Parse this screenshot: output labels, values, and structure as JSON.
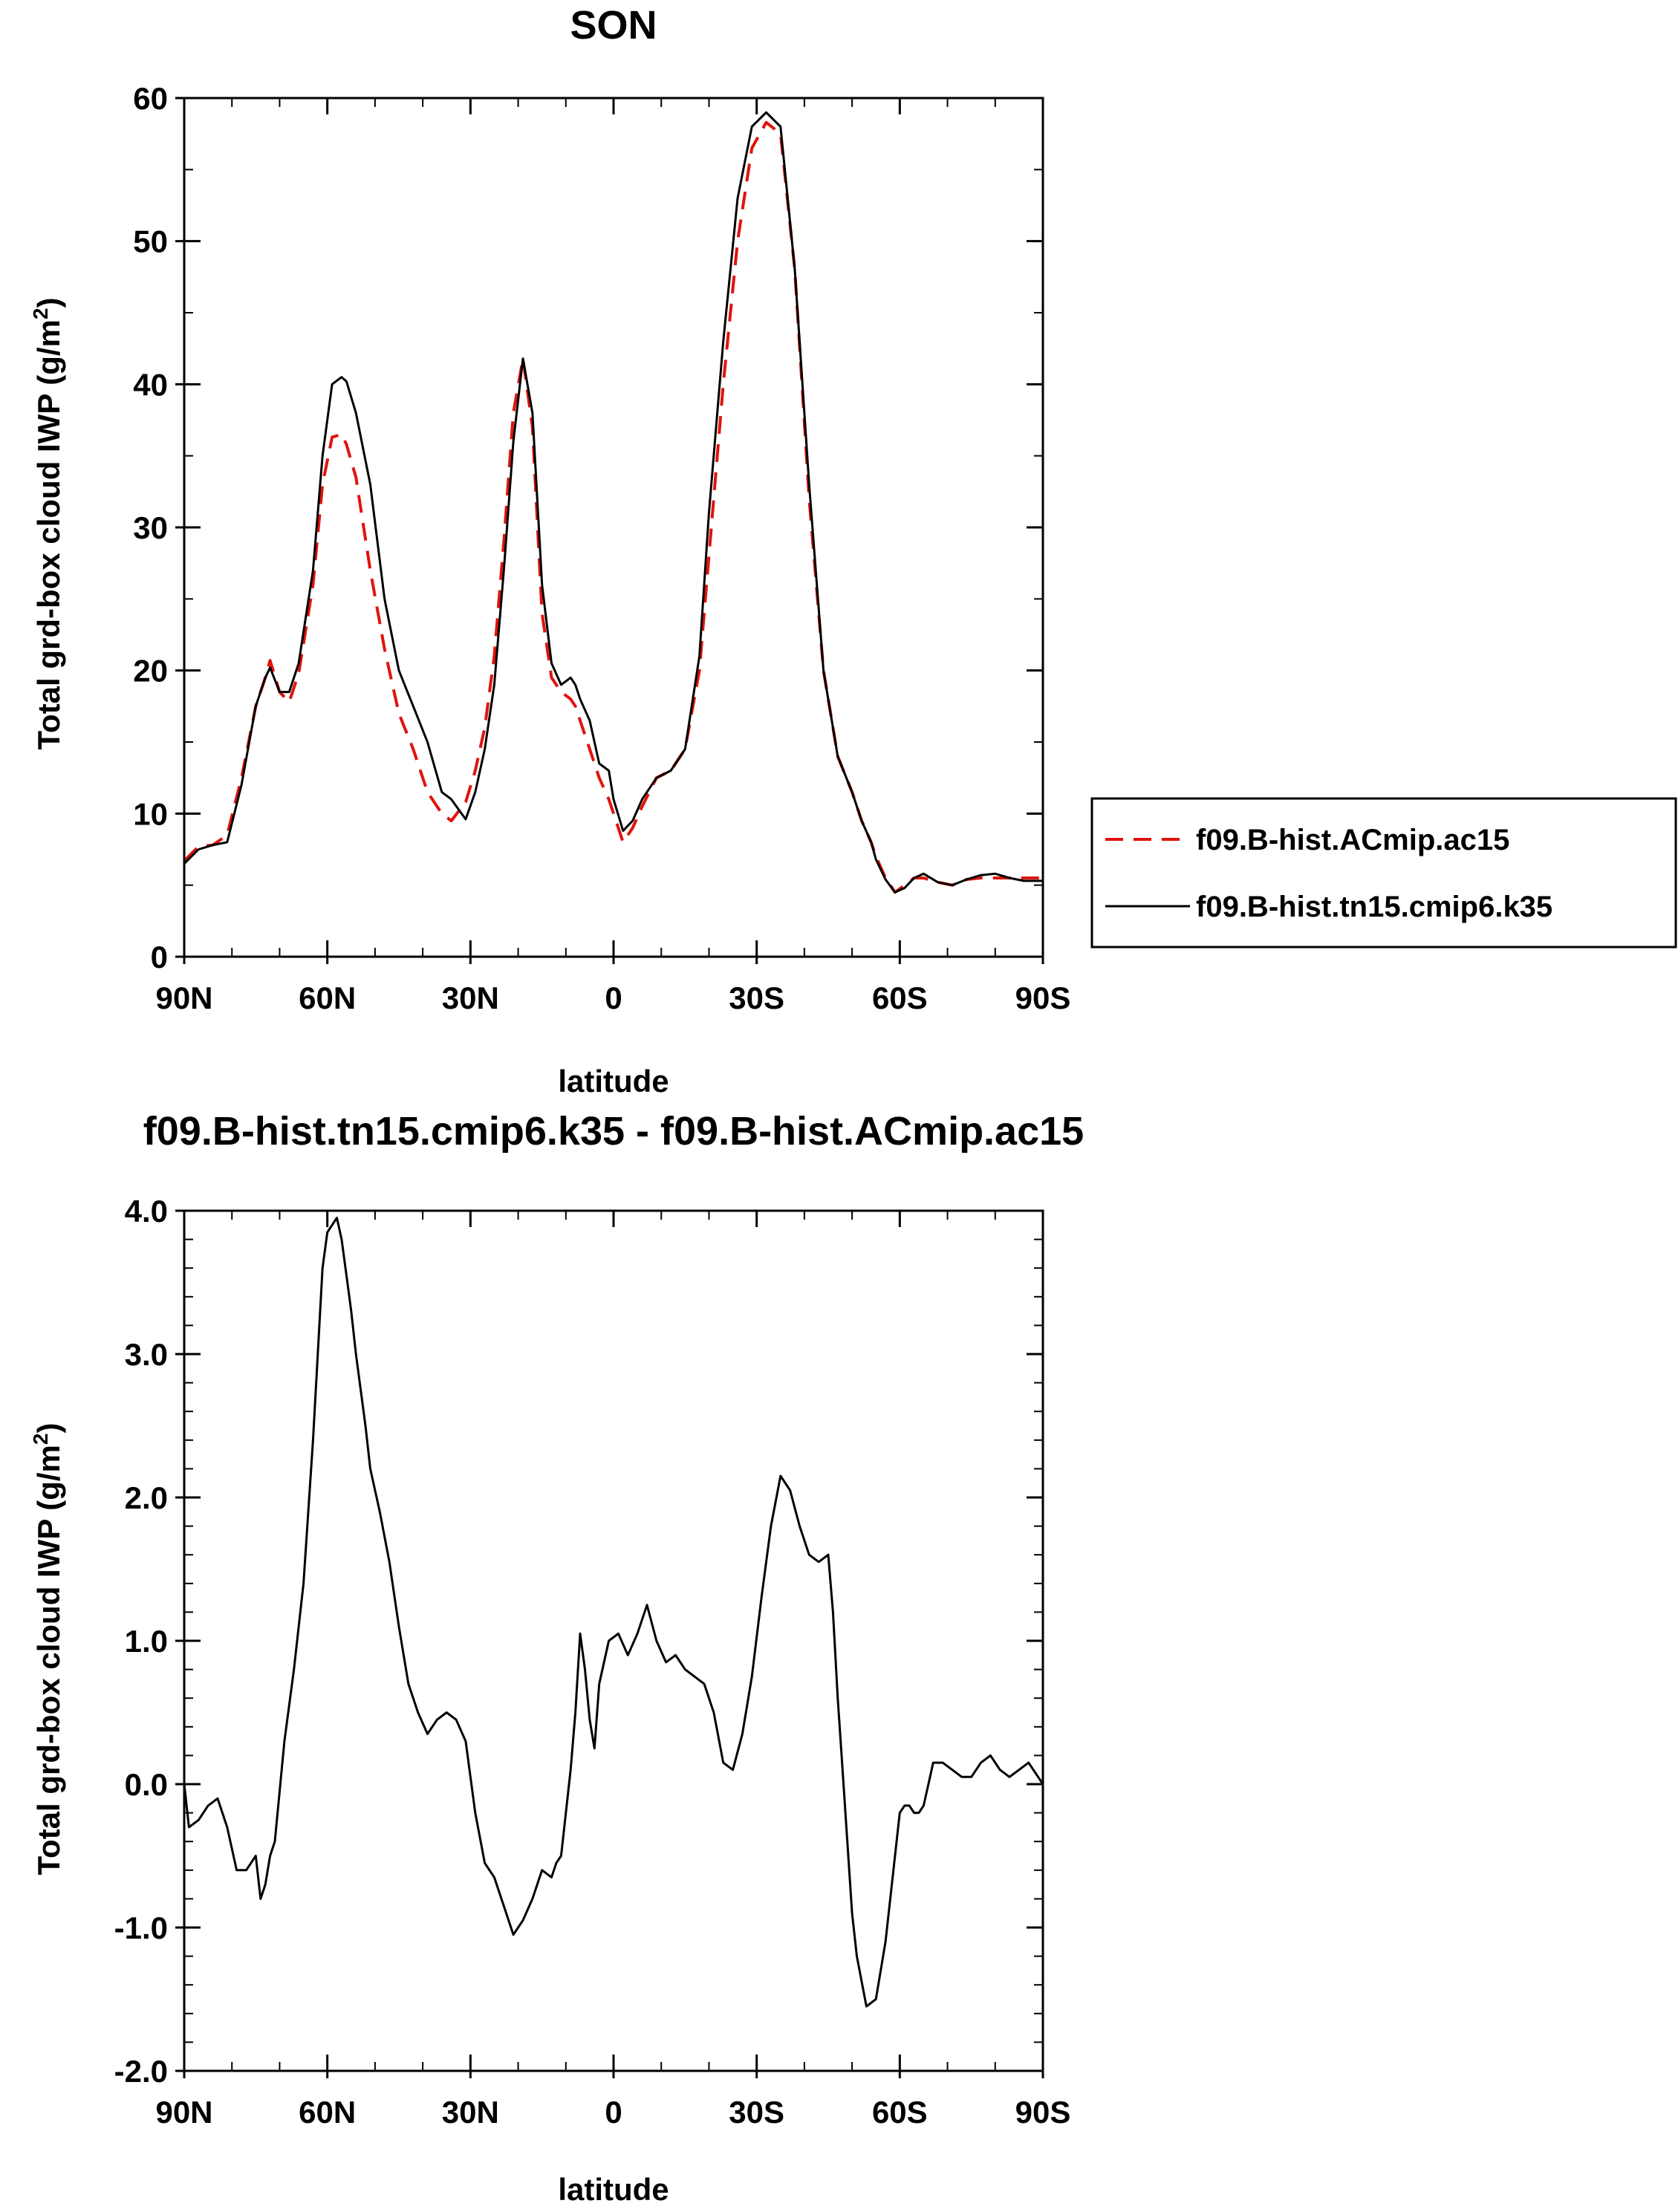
{
  "colors": {
    "axis": "#000000",
    "series_dashed": "#e0140c",
    "series_solid": "#000000"
  },
  "legend": {
    "entries": [
      {
        "label": "f09.B-hist.ACmip.ac15",
        "style": "dashed",
        "color": "#e0140c"
      },
      {
        "label": "f09.B-hist.tn15.cmip6.k35",
        "style": "solid",
        "color": "#000000"
      }
    ],
    "placement": "right, outside plot"
  },
  "chart_data": [
    {
      "type": "line",
      "title": "SON",
      "xlabel": "latitude",
      "ylabel": "Total grd-box cloud IWP (g/m",
      "ylabel_sup": "2",
      "ylabel_tail": ")",
      "xlim": [
        90,
        -90
      ],
      "ylim": [
        0,
        60
      ],
      "x_ticks": [
        90,
        60,
        30,
        0,
        -30,
        -60,
        -90
      ],
      "x_tick_labels": [
        "90N",
        "60N",
        "30N",
        "0",
        "30S",
        "60S",
        "90S"
      ],
      "y_ticks": [
        0,
        10,
        20,
        30,
        40,
        50,
        60
      ],
      "y_tick_labels": [
        "0",
        "10",
        "20",
        "30",
        "40",
        "50",
        "60"
      ],
      "grid": false,
      "x": [
        90,
        87,
        84,
        81,
        78,
        75,
        73,
        72,
        70,
        68,
        66,
        63,
        61,
        59,
        57,
        56,
        54,
        51,
        48,
        45,
        42,
        39,
        36,
        34,
        31,
        29,
        27,
        25,
        23,
        21,
        19,
        17,
        15,
        13,
        11,
        9,
        8,
        7,
        5,
        3,
        1,
        0,
        -2,
        -4,
        -6,
        -9,
        -12,
        -15,
        -18,
        -20,
        -23,
        -26,
        -29,
        -32,
        -35,
        -38,
        -41,
        -44,
        -47,
        -50,
        -52,
        -54,
        -55,
        -57,
        -59,
        -61,
        -63,
        -65,
        -68,
        -71,
        -74,
        -77,
        -80,
        -83,
        -86,
        -88,
        -90
      ],
      "series": [
        {
          "name": "f09.B-hist.ACmip.ac15",
          "style": "dashed",
          "values": [
            6.7,
            7.7,
            7.8,
            8.5,
            12.5,
            17.5,
            19.5,
            20.7,
            18.5,
            17.8,
            19.8,
            26.0,
            33.0,
            36.3,
            36.5,
            35.8,
            33.5,
            27.0,
            21.5,
            17.0,
            14.5,
            11.5,
            10.0,
            9.5,
            10.8,
            13.0,
            16.0,
            21.0,
            29.0,
            38.0,
            41.8,
            37.0,
            24.0,
            19.5,
            18.5,
            18.0,
            17.5,
            16.5,
            14.5,
            12.5,
            11.0,
            10.0,
            8.0,
            9.0,
            10.5,
            12.5,
            13.0,
            14.5,
            20.0,
            28.0,
            40.0,
            50.0,
            56.5,
            58.3,
            57.5,
            48.0,
            32.0,
            20.0,
            14.0,
            11.5,
            9.5,
            8.0,
            7.0,
            5.5,
            4.5,
            5.0,
            5.5,
            5.5,
            5.2,
            5.0,
            5.4,
            5.5,
            5.5,
            5.5,
            5.5,
            5.5,
            5.5
          ]
        },
        {
          "name": "f09.B-hist.tn15.cmip6.k35",
          "style": "solid",
          "values": [
            6.5,
            7.5,
            7.8,
            8.0,
            12.0,
            17.5,
            19.5,
            20.2,
            18.5,
            18.5,
            20.5,
            27.0,
            35.0,
            40.0,
            40.5,
            40.2,
            38.0,
            33.0,
            25.0,
            20.0,
            17.5,
            15.0,
            11.5,
            11.0,
            9.6,
            11.5,
            14.5,
            19.0,
            27.0,
            36.0,
            41.8,
            38.0,
            26.0,
            20.5,
            19.0,
            19.5,
            19.0,
            18.0,
            16.5,
            13.5,
            13.0,
            11.0,
            8.8,
            9.5,
            11.0,
            12.5,
            13.0,
            14.5,
            21.0,
            31.0,
            43.0,
            53.0,
            58.0,
            59.0,
            58.0,
            48.0,
            33.0,
            20.0,
            14.0,
            11.5,
            9.5,
            8.0,
            6.8,
            5.4,
            4.5,
            4.8,
            5.5,
            5.8,
            5.2,
            5.0,
            5.4,
            5.7,
            5.8,
            5.5,
            5.3,
            5.3,
            5.3
          ]
        }
      ]
    },
    {
      "type": "line",
      "title": "f09.B-hist.tn15.cmip6.k35 - f09.B-hist.ACmip.ac15",
      "xlabel": "latitude",
      "ylabel": "Total grd-box cloud IWP (g/m",
      "ylabel_sup": "2",
      "ylabel_tail": ")",
      "xlim": [
        90,
        -90
      ],
      "ylim": [
        -2.0,
        4.0
      ],
      "x_ticks": [
        90,
        60,
        30,
        0,
        -30,
        -60,
        -90
      ],
      "x_tick_labels": [
        "90N",
        "60N",
        "30N",
        "0",
        "30S",
        "60S",
        "90S"
      ],
      "y_ticks": [
        -2.0,
        -1.0,
        0.0,
        1.0,
        2.0,
        3.0,
        4.0
      ],
      "y_tick_labels": [
        "-2.0",
        "-1.0",
        "0.0",
        "1.0",
        "2.0",
        "3.0",
        "4.0"
      ],
      "grid": false,
      "x": [
        90,
        89,
        87,
        85,
        83,
        81,
        79,
        77,
        75,
        74,
        73,
        72,
        71,
        69,
        67,
        65,
        63,
        62,
        61,
        60,
        59,
        58,
        57,
        56,
        55,
        54,
        53,
        52,
        51,
        49,
        47,
        45,
        43,
        41,
        39,
        37,
        35,
        33,
        31,
        29,
        27,
        25,
        23,
        21,
        19,
        17,
        15,
        13,
        12,
        11,
        10,
        9,
        8,
        7,
        6,
        5,
        4,
        3,
        1,
        -1,
        -3,
        -5,
        -7,
        -9,
        -11,
        -13,
        -15,
        -17,
        -19,
        -21,
        -23,
        -25,
        -27,
        -29,
        -31,
        -33,
        -35,
        -37,
        -39,
        -41,
        -43,
        -45,
        -46,
        -47,
        -48,
        -49,
        -50,
        -51,
        -53,
        -55,
        -57,
        -59,
        -60,
        -61,
        -62,
        -63,
        -64,
        -65,
        -66,
        -67,
        -69,
        -71,
        -73,
        -75,
        -77,
        -79,
        -81,
        -83,
        -85,
        -87,
        -89,
        -90
      ],
      "series": [
        {
          "name": "f09.B-hist.tn15.cmip6.k35 - f09.B-hist.ACmip.ac15",
          "style": "solid",
          "values": [
            0.0,
            -0.3,
            -0.25,
            -0.15,
            -0.1,
            -0.3,
            -0.6,
            -0.6,
            -0.5,
            -0.8,
            -0.7,
            -0.5,
            -0.4,
            0.3,
            0.8,
            1.4,
            2.4,
            3.0,
            3.6,
            3.85,
            3.9,
            3.95,
            3.8,
            3.55,
            3.3,
            3.0,
            2.75,
            2.5,
            2.2,
            1.9,
            1.55,
            1.1,
            0.7,
            0.5,
            0.35,
            0.45,
            0.5,
            0.45,
            0.3,
            -0.2,
            -0.55,
            -0.65,
            -0.85,
            -1.05,
            -0.95,
            -0.8,
            -0.6,
            -0.65,
            -0.55,
            -0.5,
            -0.2,
            0.1,
            0.5,
            1.05,
            0.8,
            0.45,
            0.25,
            0.7,
            1.0,
            1.05,
            0.9,
            1.05,
            1.25,
            1.0,
            0.85,
            0.9,
            0.8,
            0.75,
            0.7,
            0.5,
            0.15,
            0.1,
            0.35,
            0.75,
            1.3,
            1.8,
            2.15,
            2.05,
            1.8,
            1.6,
            1.55,
            1.6,
            1.2,
            0.6,
            0.1,
            -0.4,
            -0.9,
            -1.2,
            -1.55,
            -1.5,
            -1.1,
            -0.5,
            -0.2,
            -0.15,
            -0.15,
            -0.2,
            -0.2,
            -0.15,
            0.0,
            0.15,
            0.15,
            0.1,
            0.05,
            0.05,
            0.15,
            0.2,
            0.1,
            0.05,
            0.1,
            0.15,
            0.05,
            0.0
          ]
        }
      ]
    }
  ]
}
